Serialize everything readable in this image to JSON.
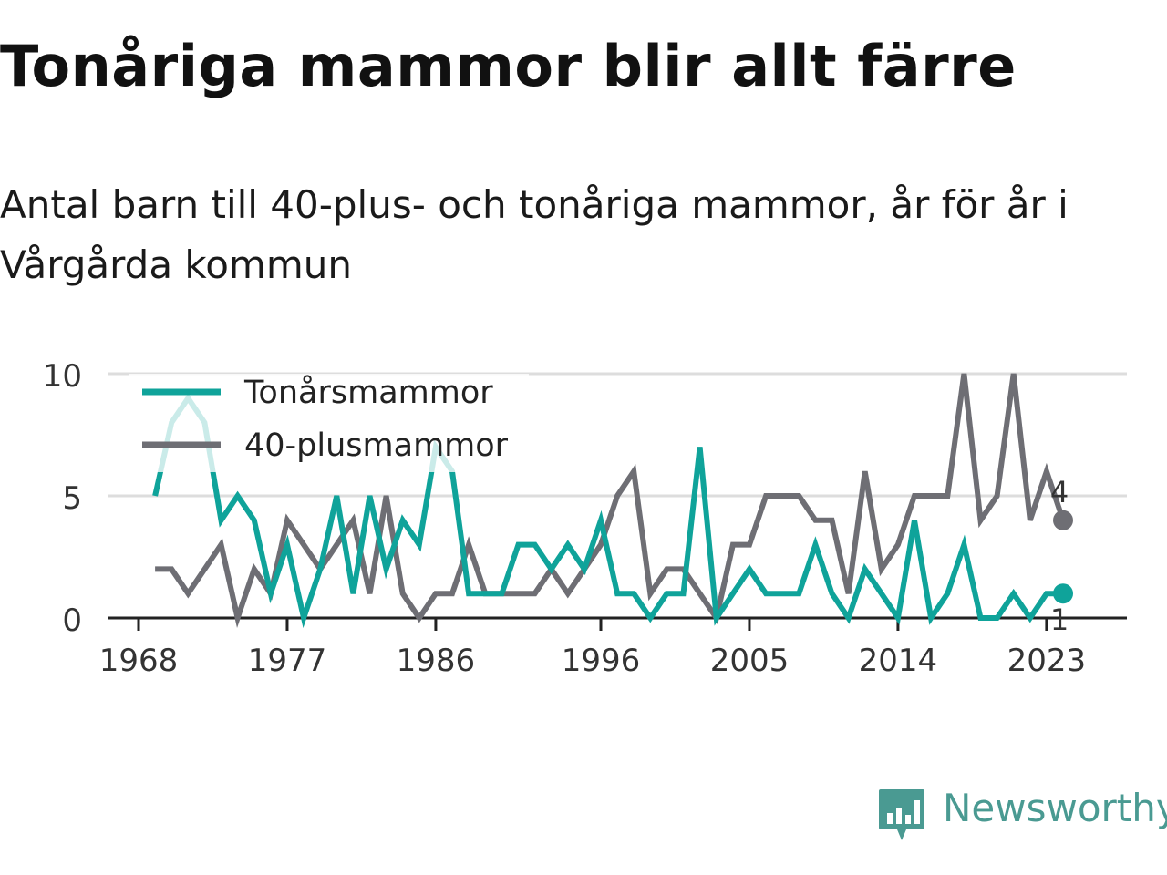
{
  "header": {
    "title": "Tonåriga mammor blir allt färre",
    "subtitle": "Antal barn till 40-plus- och tonåriga mammor, år för år i Vårgårda kommun"
  },
  "brand": {
    "name": "Newsworthy",
    "color": "#4a9a92",
    "icon": "bar-chart-speech-bubble-icon"
  },
  "chart_data": {
    "type": "line",
    "x_ticks": [
      1968,
      1977,
      1986,
      1996,
      2005,
      2014,
      2023
    ],
    "y_ticks": [
      0,
      5,
      10
    ],
    "xlim": [
      1967,
      2026
    ],
    "ylim": [
      0,
      10
    ],
    "grid": true,
    "legend_position": "top-left",
    "series": [
      {
        "name": "Tonårsmammor",
        "color": "#0fa39a",
        "start_year": 1969,
        "values": [
          5,
          8,
          9,
          8,
          4,
          5,
          4,
          1,
          3,
          0,
          2,
          5,
          1,
          5,
          2,
          4,
          3,
          7,
          6,
          1,
          1,
          1,
          3,
          3,
          2,
          3,
          2,
          4,
          1,
          1,
          0,
          1,
          1,
          7,
          0,
          1,
          2,
          1,
          1,
          1,
          3,
          1,
          0,
          2,
          1,
          0,
          4,
          0,
          1,
          3,
          0,
          0,
          1,
          0,
          1,
          1
        ],
        "end_label": "1"
      },
      {
        "name": "40-plusmammor",
        "color": "#6e6e74",
        "start_year": 1969,
        "values": [
          2,
          2,
          1,
          2,
          3,
          0,
          2,
          1,
          4,
          3,
          2,
          3,
          4,
          1,
          5,
          1,
          0,
          1,
          1,
          3,
          1,
          1,
          1,
          1,
          2,
          1,
          2,
          3,
          5,
          6,
          1,
          2,
          2,
          1,
          0,
          3,
          3,
          5,
          5,
          5,
          4,
          4,
          1,
          6,
          2,
          3,
          5,
          5,
          5,
          10,
          4,
          5,
          10,
          4,
          6,
          4
        ],
        "end_label": "4"
      }
    ]
  }
}
